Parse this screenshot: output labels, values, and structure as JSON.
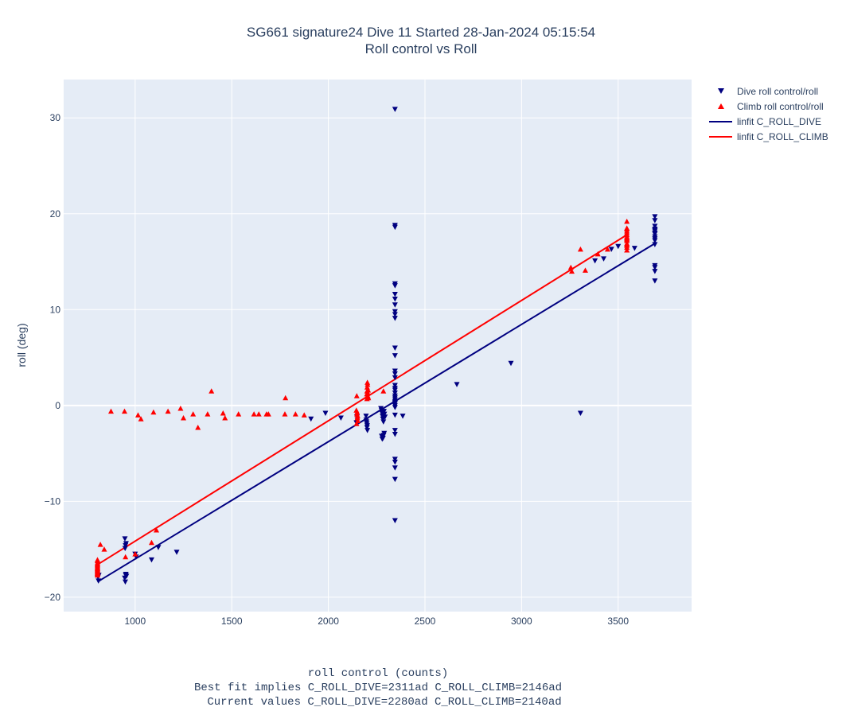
{
  "chart_data": {
    "type": "scatter",
    "title": "SG661 signature24 Dive 11 Started 28-Jan-2024 05:15:54",
    "subtitle": "Roll control vs Roll",
    "xlabel": "roll control (counts)",
    "xlabel_notes": [
      "Best fit implies C_ROLL_DIVE=2311ad C_ROLL_CLIMB=2146ad",
      "Current values C_ROLL_DIVE=2280ad C_ROLL_CLIMB=2140ad"
    ],
    "ylabel": "roll (deg)",
    "xlim": [
      630,
      3880
    ],
    "ylim": [
      -21.5,
      34
    ],
    "xticks": [
      1000,
      1500,
      2000,
      2500,
      3000,
      3500
    ],
    "yticks": [
      -20,
      -10,
      0,
      10,
      20,
      30
    ],
    "grid": true,
    "legend_position": "top-right",
    "colors": {
      "dive": "#000080",
      "climb": "#ff0000",
      "plot_bg": "#e5ecf6",
      "grid": "#ffffff"
    },
    "series": [
      {
        "name": "Dive roll control/roll",
        "kind": "markers",
        "marker": "triangle-down",
        "x": [
          810,
          812,
          808,
          947,
          950,
          948,
          952,
          955,
          946,
          949,
          951,
          953,
          1000,
          1005,
          1085,
          1120,
          1215,
          1910,
          1985,
          2065,
          2145,
          2148,
          2150,
          2195,
          2198,
          2200,
          2202,
          2196,
          2199,
          2201,
          2275,
          2278,
          2280,
          2282,
          2285,
          2288,
          2290,
          2276,
          2279,
          2283,
          2286,
          2289,
          2272,
          2293,
          2345,
          2345,
          2345,
          2345,
          2345,
          2345,
          2345,
          2345,
          2345,
          2345,
          2345,
          2345,
          2345,
          2345,
          2345,
          2345,
          2345,
          2345,
          2345,
          2345,
          2345,
          2345,
          2345,
          2345,
          2345,
          2345,
          2345,
          2345,
          2345,
          2345,
          2345,
          2345,
          2345,
          2345,
          2345,
          2345,
          2385,
          2665,
          2945,
          3305,
          3380,
          3425,
          3465,
          3500,
          3585,
          3690,
          3690,
          3690,
          3690,
          3690,
          3690,
          3690,
          3690,
          3690,
          3690,
          3690,
          3690,
          3690,
          3690,
          3690,
          3690
        ],
        "y": [
          -18.3,
          -17.7,
          -17.9,
          -13.9,
          -14.6,
          -14.9,
          -17.6,
          -17.8,
          -18.0,
          -18.4,
          -17.7,
          -14.4,
          -15.5,
          -15.8,
          -16.1,
          -14.8,
          -15.3,
          -1.4,
          -0.8,
          -1.3,
          -1.8,
          -1.2,
          -1.5,
          -1.1,
          -1.7,
          -2.3,
          -2.6,
          -1.5,
          -1.9,
          -2.1,
          -0.5,
          -0.8,
          -1.1,
          -1.4,
          -1.7,
          -0.6,
          -0.9,
          -3.2,
          -3.5,
          -3.4,
          -3.1,
          -2.9,
          -0.3,
          -1.2,
          30.9,
          18.8,
          18.6,
          12.7,
          12.5,
          11.6,
          11.1,
          10.5,
          9.8,
          9.5,
          9.1,
          6.0,
          5.2,
          3.6,
          3.3,
          2.9,
          1.6,
          1.3,
          1.0,
          0.8,
          0.6,
          0.4,
          0.2,
          0.0,
          -0.2,
          -1.0,
          -2.6,
          -3.0,
          -5.6,
          -5.9,
          -6.5,
          -7.7,
          -12.0,
          2.1,
          0.3,
          1.8,
          -1.1,
          2.2,
          4.4,
          -0.8,
          15.1,
          15.3,
          16.3,
          16.6,
          16.4,
          19.7,
          19.3,
          18.7,
          18.4,
          18.2,
          17.9,
          17.6,
          17.2,
          16.8,
          14.6,
          14.4,
          14.0,
          13.0,
          18.0,
          17.4,
          18.3
        ],
        "color": "#000080"
      },
      {
        "name": "Climb roll control/roll",
        "kind": "markers",
        "marker": "triangle-up",
        "x": [
          805,
          805,
          805,
          805,
          805,
          805,
          805,
          805,
          805,
          805,
          805,
          805,
          805,
          805,
          805,
          805,
          805,
          805,
          805,
          805,
          820,
          840,
          875,
          945,
          950,
          1000,
          1015,
          1030,
          1085,
          1095,
          1110,
          1170,
          1235,
          1250,
          1300,
          1325,
          1375,
          1395,
          1455,
          1465,
          1535,
          1615,
          1640,
          1680,
          1690,
          1775,
          1778,
          1830,
          1875,
          2145,
          2148,
          2150,
          2152,
          2146,
          2149,
          2151,
          2147,
          2200,
          2202,
          2204,
          2206,
          2201,
          2203,
          2205,
          2199,
          2207,
          2200,
          2202,
          2204,
          2285,
          3255,
          3260,
          3305,
          3330,
          3395,
          3445,
          3545,
          3545,
          3545,
          3545,
          3545,
          3545,
          3545,
          3545,
          3545,
          3545,
          3545,
          3545,
          3545,
          3545,
          3545,
          3545
        ],
        "y": [
          -16.1,
          -16.4,
          -16.6,
          -16.7,
          -16.9,
          -17.0,
          -17.1,
          -17.2,
          -17.3,
          -17.4,
          -17.5,
          -17.5,
          -17.6,
          -17.7,
          -17.2,
          -16.8,
          -16.5,
          -16.2,
          -17.0,
          -17.3,
          -14.5,
          -15.0,
          -0.6,
          -0.6,
          -15.8,
          -15.5,
          -1.0,
          -1.4,
          -14.3,
          -0.7,
          -13.0,
          -0.6,
          -0.3,
          -1.3,
          -0.9,
          -2.3,
          -0.9,
          1.5,
          -0.8,
          -1.3,
          -0.9,
          -0.9,
          -0.9,
          -0.9,
          -0.9,
          -0.9,
          0.8,
          -0.9,
          -1.0,
          -0.5,
          -0.9,
          -1.3,
          -1.6,
          -1.9,
          -0.7,
          -1.1,
          1.0,
          0.7,
          1.0,
          1.3,
          1.6,
          1.9,
          2.2,
          0.9,
          1.2,
          0.8,
          1.5,
          2.4,
          1.0,
          1.5,
          14.4,
          14.0,
          16.3,
          14.1,
          15.8,
          16.3,
          19.2,
          18.4,
          18.2,
          18.0,
          17.8,
          17.6,
          17.4,
          17.2,
          16.9,
          16.7,
          16.5,
          16.2,
          17.5,
          16.8,
          17.3,
          18.5
        ],
        "color": "#ff0000"
      },
      {
        "name": "linfit C_ROLL_DIVE",
        "kind": "line",
        "x": [
          805,
          3690
        ],
        "y": [
          -18.4,
          16.9
        ],
        "color": "#000080"
      },
      {
        "name": "linfit C_ROLL_CLIMB",
        "kind": "line",
        "x": [
          805,
          3545
        ],
        "y": [
          -16.6,
          17.8
        ],
        "color": "#ff0000"
      }
    ]
  }
}
